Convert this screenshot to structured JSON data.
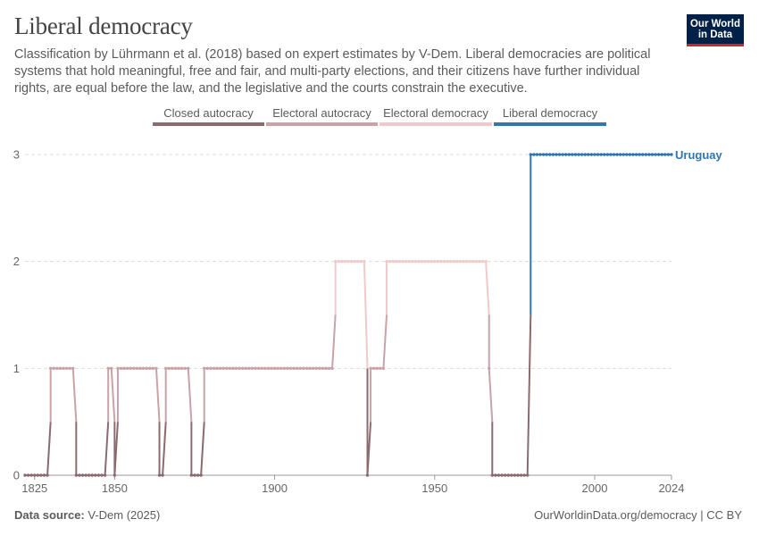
{
  "header": {
    "title": "Liberal democracy",
    "subtitle": "Classification by Lührmann et al. (2018) based on expert estimates by V-Dem. Liberal democracies are political systems that hold meaningful, free and fair, and multi-party elections, and their citizens have further individual rights, are equal before the law, and the legislative and the courts constrain the executive.",
    "logo_line1": "Our World",
    "logo_line2": "in Data"
  },
  "footer": {
    "source_label": "Data source:",
    "source_value": "V-Dem (2025)",
    "credit": "OurWorldinData.org/democracy | CC BY"
  },
  "colors": {
    "closed_autocracy": "#8b6b70",
    "electoral_autocracy": "#c9a3a7",
    "electoral_democracy": "#f0c9cc",
    "liberal_democracy": "#2f76b2",
    "grid": "#dddddd",
    "axis_text": "#666666"
  },
  "chart_data": {
    "type": "line",
    "title": "Liberal democracy",
    "country": "Uruguay",
    "xlabel": "",
    "ylabel": "",
    "xlim": [
      1822,
      2024
    ],
    "ylim": [
      0,
      3
    ],
    "x_ticks": [
      1825,
      1850,
      1900,
      1950,
      2000,
      2024
    ],
    "y_ticks": [
      0,
      1,
      2,
      3
    ],
    "grid": true,
    "legend_position": "top-center",
    "legend": [
      {
        "label": "Closed autocracy",
        "value": 0
      },
      {
        "label": "Electoral autocracy",
        "value": 1
      },
      {
        "label": "Electoral democracy",
        "value": 2
      },
      {
        "label": "Liberal democracy",
        "value": 3
      }
    ],
    "segments": [
      {
        "start": 1822,
        "end": 1829,
        "value": 0
      },
      {
        "start": 1830,
        "end": 1837,
        "value": 1
      },
      {
        "start": 1838,
        "end": 1847,
        "value": 0
      },
      {
        "start": 1848,
        "end": 1849,
        "value": 1
      },
      {
        "start": 1850,
        "end": 1850,
        "value": 0
      },
      {
        "start": 1851,
        "end": 1863,
        "value": 1
      },
      {
        "start": 1864,
        "end": 1865,
        "value": 0
      },
      {
        "start": 1866,
        "end": 1873,
        "value": 1
      },
      {
        "start": 1874,
        "end": 1877,
        "value": 0
      },
      {
        "start": 1878,
        "end": 1918,
        "value": 1
      },
      {
        "start": 1919,
        "end": 1928,
        "value": 2
      },
      {
        "start": 1929,
        "end": 1929,
        "value": 0
      },
      {
        "start": 1930,
        "end": 1934,
        "value": 1
      },
      {
        "start": 1935,
        "end": 1966,
        "value": 2
      },
      {
        "start": 1967,
        "end": 1967,
        "value": 1
      },
      {
        "start": 1968,
        "end": 1979,
        "value": 0
      },
      {
        "start": 1980,
        "end": 2024,
        "value": 3
      }
    ]
  }
}
